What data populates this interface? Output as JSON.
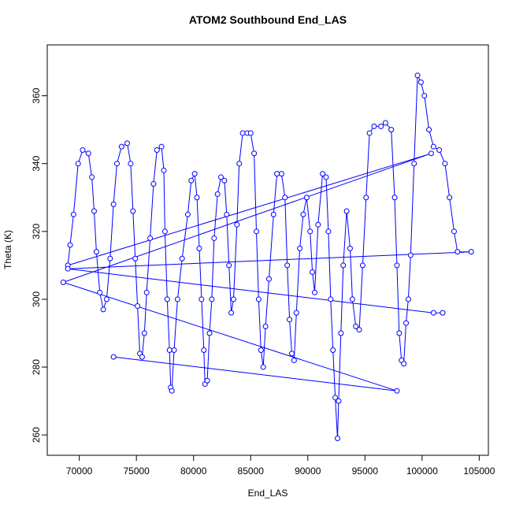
{
  "chart_data": {
    "type": "line",
    "title": "ATOM2 Southbound End_LAS",
    "x_label": "End_LAS",
    "y_label": "Theta (K)",
    "color": "#0000ff",
    "x": [
      73000,
      97800,
      68600,
      100800,
      69000,
      69200,
      69500,
      69900,
      70300,
      70800,
      71100,
      71300,
      71500,
      71800,
      72100,
      72400,
      72700,
      73000,
      73300,
      73700,
      74200,
      74500,
      74700,
      74900,
      75100,
      75300,
      75500,
      75700,
      75900,
      76200,
      76500,
      76800,
      77200,
      77400,
      77500,
      77700,
      77900,
      78000,
      78100,
      78300,
      78600,
      79000,
      79500,
      79800,
      80100,
      80300,
      80500,
      80700,
      80900,
      81000,
      81200,
      81400,
      81600,
      81800,
      82100,
      82400,
      82700,
      82900,
      83100,
      83300,
      83500,
      83800,
      84000,
      84300,
      84700,
      85000,
      85300,
      85500,
      85700,
      85900,
      86100,
      86300,
      86600,
      87000,
      87300,
      87700,
      88000,
      88200,
      88400,
      88600,
      88800,
      89000,
      89300,
      89600,
      89900,
      90200,
      90400,
      90600,
      90900,
      91300,
      91600,
      91800,
      92000,
      92200,
      92400,
      92600,
      92700,
      92900,
      93100,
      93400,
      93700,
      93900,
      94200,
      94500,
      94800,
      95100,
      95400,
      95800,
      96400,
      96800,
      97300,
      97600,
      97800,
      98000,
      98200,
      98400,
      98600,
      98800,
      99000,
      99300,
      99600,
      99900,
      100200,
      100600,
      101000,
      101500,
      102000,
      102400,
      102800,
      103100,
      104300,
      69000,
      101000,
      101800
    ],
    "values": [
      283,
      273,
      305,
      343,
      310,
      316,
      325,
      340,
      344,
      343,
      336,
      326,
      314,
      302,
      297,
      300,
      312,
      328,
      340,
      345,
      346,
      340,
      326,
      312,
      298,
      284,
      283,
      290,
      302,
      318,
      334,
      344,
      345,
      338,
      320,
      300,
      285,
      274,
      273,
      285,
      300,
      312,
      325,
      335,
      337,
      330,
      315,
      300,
      285,
      275,
      276,
      290,
      300,
      318,
      331,
      336,
      335,
      325,
      310,
      296,
      300,
      322,
      340,
      349,
      349,
      349,
      343,
      320,
      300,
      285,
      280,
      292,
      306,
      325,
      337,
      337,
      330,
      310,
      294,
      284,
      282,
      296,
      315,
      325,
      330,
      320,
      308,
      302,
      322,
      337,
      336,
      320,
      300,
      285,
      271,
      259,
      270,
      290,
      310,
      326,
      315,
      300,
      292,
      291,
      310,
      330,
      349,
      351,
      351,
      352,
      350,
      330,
      310,
      290,
      282,
      281,
      293,
      300,
      313,
      340,
      366,
      364,
      360,
      350,
      345,
      344,
      340,
      330,
      320,
      314,
      314,
      309,
      296,
      296
    ],
    "xlim": [
      67200,
      105800
    ],
    "ylim": [
      254,
      375
    ],
    "xticks": [
      70000,
      75000,
      80000,
      85000,
      90000,
      95000,
      100000,
      105000
    ],
    "yticks": [
      260,
      280,
      300,
      320,
      340,
      360
    ]
  }
}
